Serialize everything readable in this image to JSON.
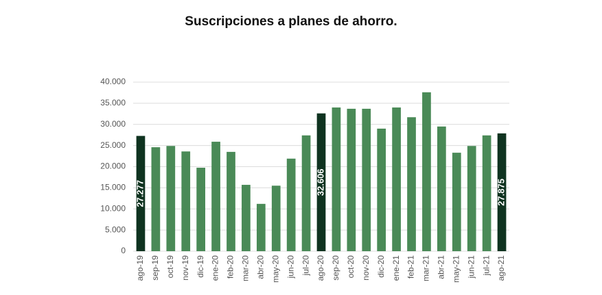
{
  "chart_data": {
    "type": "bar",
    "title": "Suscripciones a planes de ahorro.",
    "categories": [
      "ago-19",
      "sep-19",
      "oct-19",
      "nov-19",
      "dic-19",
      "ene-20",
      "feb-20",
      "mar-20",
      "abr-20",
      "may-20",
      "jun-20",
      "jul-20",
      "ago-20",
      "sep-20",
      "oct-20",
      "nov-20",
      "dic-20",
      "ene-21",
      "feb-21",
      "mar-21",
      "abr-21",
      "may-21",
      "jun-21",
      "jul-21",
      "ago-21"
    ],
    "values": [
      27277,
      24600,
      24900,
      23600,
      19750,
      25900,
      23500,
      15700,
      11200,
      15500,
      21900,
      27400,
      32606,
      34000,
      33700,
      33700,
      29000,
      34000,
      31700,
      37600,
      29500,
      23300,
      24900,
      27400,
      27875
    ],
    "value_labels": [
      "27.277",
      null,
      null,
      null,
      null,
      null,
      null,
      null,
      null,
      null,
      null,
      null,
      "32.606",
      null,
      null,
      null,
      null,
      null,
      null,
      null,
      null,
      null,
      null,
      null,
      "27.875"
    ],
    "colors": [
      "#0f3320",
      "#4a8a57",
      "#4a8a57",
      "#4a8a57",
      "#4a8a57",
      "#4a8a57",
      "#4a8a57",
      "#4a8a57",
      "#4a8a57",
      "#4a8a57",
      "#4a8a57",
      "#4a8a57",
      "#0f3320",
      "#4a8a57",
      "#4a8a57",
      "#4a8a57",
      "#4a8a57",
      "#4a8a57",
      "#4a8a57",
      "#4a8a57",
      "#4a8a57",
      "#4a8a57",
      "#4a8a57",
      "#4a8a57",
      "#0f3320"
    ],
    "ylim": [
      0,
      40000
    ],
    "yticks": [
      0,
      {
        "value": 5000,
        "label": "5.000"
      },
      {
        "value": 10000,
        "label": "10.000"
      },
      {
        "value": 15000,
        "label": "15.000"
      },
      {
        "value": 20000,
        "label": "20.000"
      },
      {
        "value": 25000,
        "label": "25.000"
      },
      {
        "value": 30000,
        "label": "30.000"
      },
      {
        "value": 35000,
        "label": "35.000"
      },
      {
        "value": 40000,
        "label": "40.000"
      }
    ],
    "grid": true
  }
}
